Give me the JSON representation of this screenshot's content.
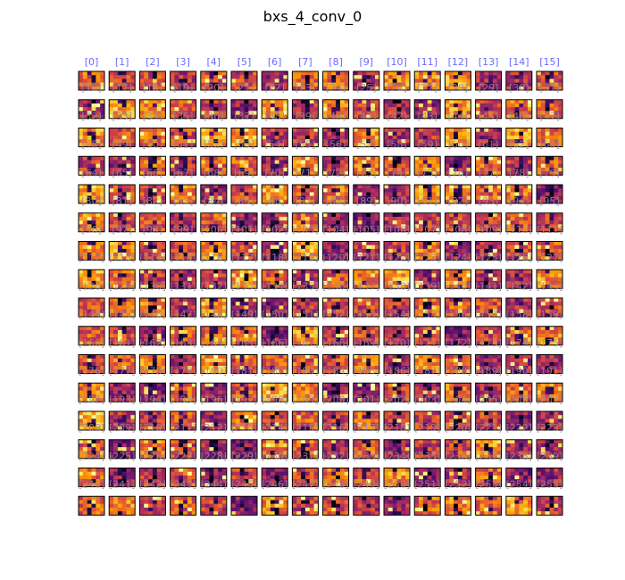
{
  "figure": {
    "title": "bxs_4_conv_0"
  },
  "chart_data": {
    "type": "heatmap",
    "title": "bxs_4_conv_0",
    "layout_rows": 16,
    "layout_cols": 16,
    "feature_map_count": 256,
    "index_labels_first_row": [
      "[0]",
      "[1]",
      "[2]",
      "[3]",
      "[4]",
      "[5]",
      "[6]",
      "[7]",
      "[8]",
      "[9]",
      "[10]",
      "[11]",
      "[12]",
      "[13]",
      "[14]",
      "[15]"
    ],
    "index_label_color": "#6a6aff",
    "index_label_overlay_color": "#9a8aa0",
    "colormap": "inferno",
    "colormap_stops": [
      "#000004",
      "#1b0c41",
      "#4a0c6b",
      "#781c6d",
      "#a52c60",
      "#cf4446",
      "#ed6925",
      "#fb9b06",
      "#f7d13d",
      "#fcffa4"
    ]
  }
}
